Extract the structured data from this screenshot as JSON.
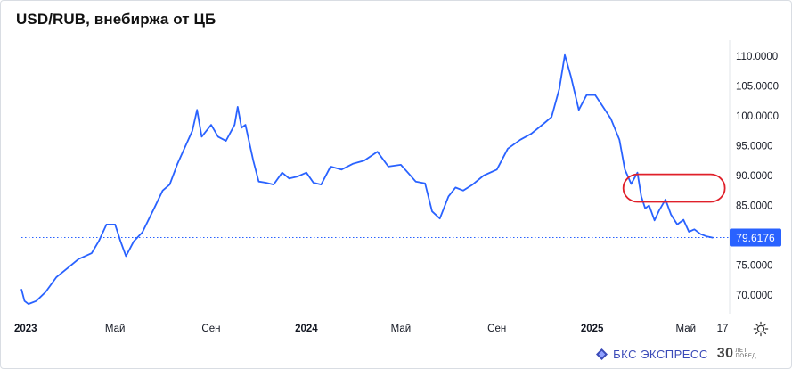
{
  "header": {
    "title": "USD/RUB, внебиржа от ЦБ"
  },
  "colors": {
    "line": "#2962ff",
    "last_badge": "#2962ff",
    "highlight": "#e0202a",
    "grid": "#e6e9ef"
  },
  "chart_data": {
    "type": "line",
    "title": "USD/RUB, внебиржа от ЦБ",
    "xlabel": "",
    "ylabel": "",
    "ylim": [
      67.5,
      111
    ],
    "y_ticks": [
      "70.0000",
      "75.0000",
      "80.0000",
      "85.0000",
      "90.0000",
      "95.0000",
      "100.0000",
      "105.0000",
      "110.0000"
    ],
    "y_tick_values": [
      70,
      75,
      80,
      85,
      90,
      95,
      100,
      105,
      110
    ],
    "x_ticks": [
      {
        "label": "2023",
        "x": "2023-01-01",
        "bold": true
      },
      {
        "label": "Май",
        "x": "2023-05-01"
      },
      {
        "label": "Сен",
        "x": "2023-09-01"
      },
      {
        "label": "2024",
        "x": "2024-01-01",
        "bold": true
      },
      {
        "label": "Май",
        "x": "2024-05-01"
      },
      {
        "label": "Сен",
        "x": "2024-09-01"
      },
      {
        "label": "2025",
        "x": "2025-01-01",
        "bold": true
      },
      {
        "label": "Май",
        "x": "2025-05-01"
      },
      {
        "label": "17",
        "x": "2025-06-17"
      }
    ],
    "last_value": "79.6176",
    "last_value_num": 79.6176,
    "highlight_range": {
      "y_from": 85.6,
      "y_to": 90.2,
      "x_from": "2025-02-10",
      "x_to": "2025-06-20"
    },
    "series": [
      {
        "x": [
          "2023-01-01",
          "2023-01-05",
          "2023-01-10",
          "2023-01-20",
          "2023-02-01",
          "2023-02-15",
          "2023-03-01",
          "2023-03-15",
          "2023-04-01",
          "2023-04-10",
          "2023-04-20",
          "2023-05-01",
          "2023-05-08",
          "2023-05-15",
          "2023-05-25",
          "2023-06-05",
          "2023-06-20",
          "2023-07-01",
          "2023-07-10",
          "2023-07-20",
          "2023-08-01",
          "2023-08-08",
          "2023-08-14",
          "2023-08-20",
          "2023-09-01",
          "2023-09-10",
          "2023-09-20",
          "2023-10-01",
          "2023-10-05",
          "2023-10-10",
          "2023-10-15",
          "2023-10-25",
          "2023-11-01",
          "2023-11-10",
          "2023-11-20",
          "2023-12-01",
          "2023-12-10",
          "2023-12-20",
          "2024-01-01",
          "2024-01-10",
          "2024-01-20",
          "2024-02-01",
          "2024-02-15",
          "2024-03-01",
          "2024-03-15",
          "2024-04-01",
          "2024-04-15",
          "2024-05-01",
          "2024-05-10",
          "2024-05-20",
          "2024-06-01",
          "2024-06-10",
          "2024-06-20",
          "2024-07-01",
          "2024-07-10",
          "2024-07-20",
          "2024-08-01",
          "2024-08-15",
          "2024-09-01",
          "2024-09-15",
          "2024-10-01",
          "2024-10-15",
          "2024-11-01",
          "2024-11-10",
          "2024-11-20",
          "2024-11-27",
          "2024-12-05",
          "2024-12-15",
          "2024-12-25",
          "2025-01-05",
          "2025-01-15",
          "2025-01-25",
          "2025-02-05",
          "2025-02-12",
          "2025-02-20",
          "2025-02-28",
          "2025-03-05",
          "2025-03-10",
          "2025-03-15",
          "2025-03-22",
          "2025-03-28",
          "2025-04-05",
          "2025-04-12",
          "2025-04-20",
          "2025-04-28",
          "2025-05-05",
          "2025-05-12",
          "2025-05-20",
          "2025-05-28",
          "2025-06-05"
        ],
        "values": [
          71.0,
          69.0,
          68.5,
          69.0,
          70.5,
          73.0,
          74.5,
          76.0,
          77.0,
          79.0,
          81.8,
          81.8,
          79.0,
          76.5,
          79.0,
          80.5,
          84.5,
          87.5,
          88.5,
          92.0,
          95.5,
          97.5,
          101.0,
          96.5,
          98.5,
          96.5,
          95.8,
          98.5,
          101.5,
          98.0,
          98.5,
          92.5,
          89.0,
          88.8,
          88.5,
          90.5,
          89.5,
          89.8,
          90.5,
          88.8,
          88.5,
          91.5,
          91.0,
          92.0,
          92.5,
          94.0,
          91.5,
          91.8,
          90.5,
          89.0,
          88.7,
          84.0,
          82.8,
          86.5,
          88.0,
          87.5,
          88.5,
          90.0,
          91.0,
          94.5,
          96.0,
          97.0,
          98.8,
          99.8,
          104.5,
          110.2,
          106.5,
          101.0,
          103.5,
          103.5,
          101.5,
          99.5,
          96.0,
          91.0,
          88.6,
          90.5,
          86.5,
          84.5,
          85.0,
          82.5,
          84.2,
          86.0,
          83.5,
          81.8,
          82.6,
          80.6,
          81.0,
          80.2,
          79.8,
          79.6
        ]
      }
    ]
  },
  "brand": {
    "name": "БКС ЭКСПРЕСС",
    "years": "30",
    "years_caption_1": "ЛЕТ",
    "years_caption_2": "ПОБЕД"
  }
}
